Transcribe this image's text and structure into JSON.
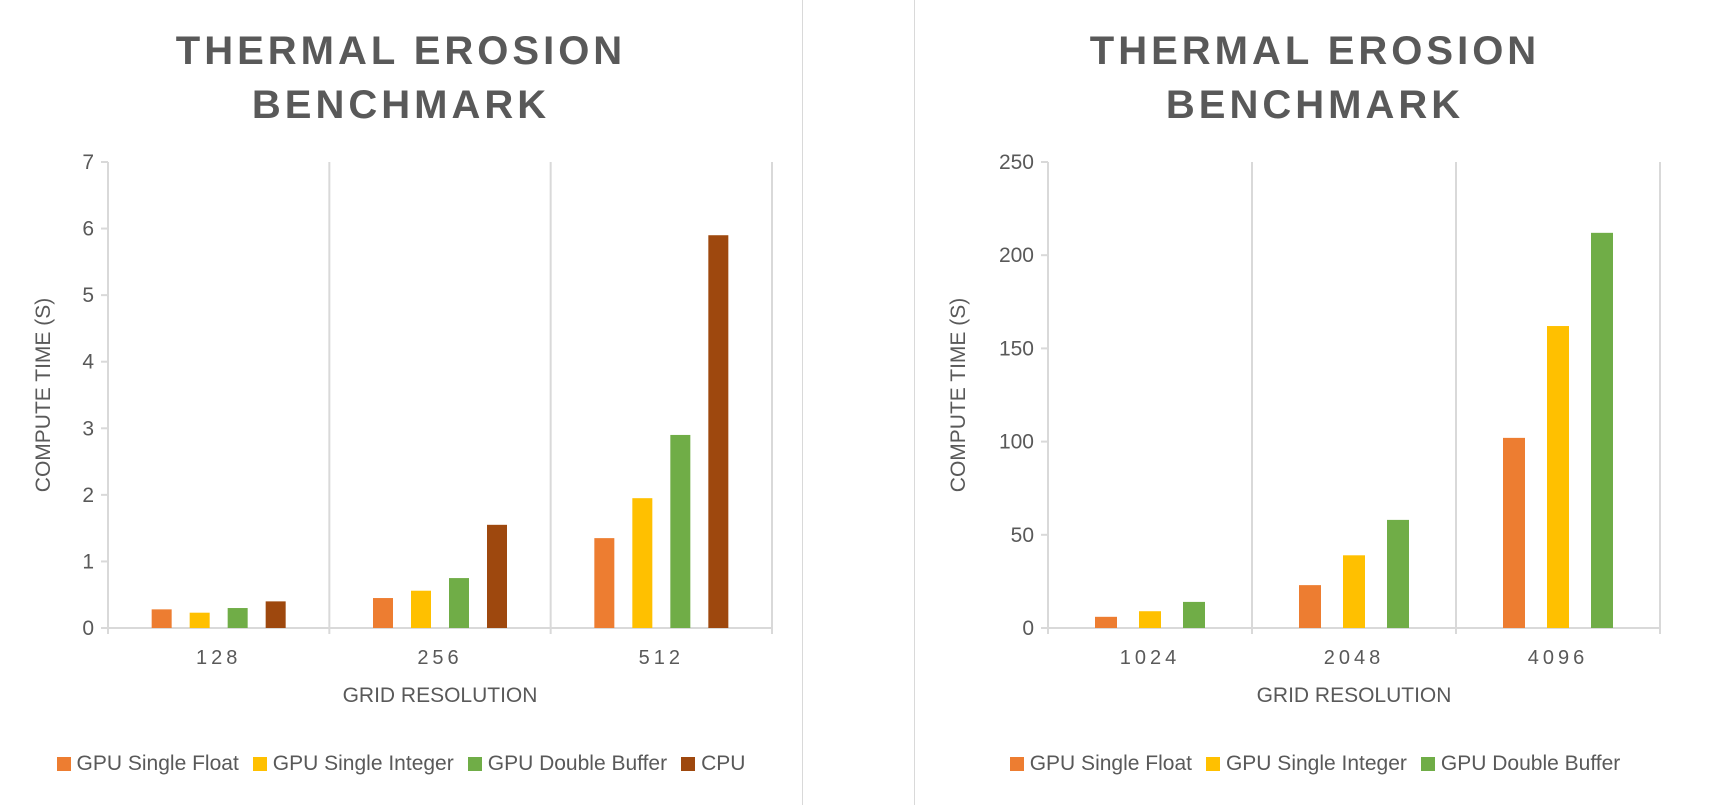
{
  "colors": {
    "gpu_single_float": "#ED7D31",
    "gpu_single_integer": "#FFC000",
    "gpu_double_buffer": "#70AD47",
    "cpu": "#9E480E",
    "gridline": "#d9d9d9",
    "text": "#595959"
  },
  "chart_data": [
    {
      "type": "bar",
      "title": "THERMAL EROSION\nBENCHMARK",
      "xlabel": "GRID RESOLUTION",
      "ylabel": "COMPUTE TIME (S)",
      "categories": [
        "128",
        "256",
        "512"
      ],
      "ylim": [
        0,
        7
      ],
      "yticks": [
        0,
        1,
        2,
        3,
        4,
        5,
        6,
        7
      ],
      "grid": "vertical category separators",
      "legend_position": "bottom",
      "series": [
        {
          "name": "GPU Single Float",
          "color": "#ED7D31",
          "values": [
            0.28,
            0.45,
            1.35
          ]
        },
        {
          "name": "GPU Single Integer",
          "color": "#FFC000",
          "values": [
            0.23,
            0.56,
            1.95
          ]
        },
        {
          "name": "GPU Double Buffer",
          "color": "#70AD47",
          "values": [
            0.3,
            0.75,
            2.9
          ]
        },
        {
          "name": "CPU",
          "color": "#9E480E",
          "values": [
            0.4,
            1.55,
            5.9
          ]
        }
      ]
    },
    {
      "type": "bar",
      "title": "THERMAL EROSION\nBENCHMARK",
      "xlabel": "GRID RESOLUTION",
      "ylabel": "COMPUTE TIME (S)",
      "categories": [
        "1024",
        "2048",
        "4096"
      ],
      "ylim": [
        0,
        250
      ],
      "yticks": [
        0,
        50,
        100,
        150,
        200,
        250
      ],
      "grid": "vertical category separators",
      "legend_position": "bottom",
      "series": [
        {
          "name": "GPU Single Float",
          "color": "#ED7D31",
          "values": [
            6,
            23,
            102
          ]
        },
        {
          "name": "GPU Single Integer",
          "color": "#FFC000",
          "values": [
            9,
            39,
            162
          ]
        },
        {
          "name": "GPU Double Buffer",
          "color": "#70AD47",
          "values": [
            14,
            58,
            212
          ]
        }
      ]
    }
  ]
}
